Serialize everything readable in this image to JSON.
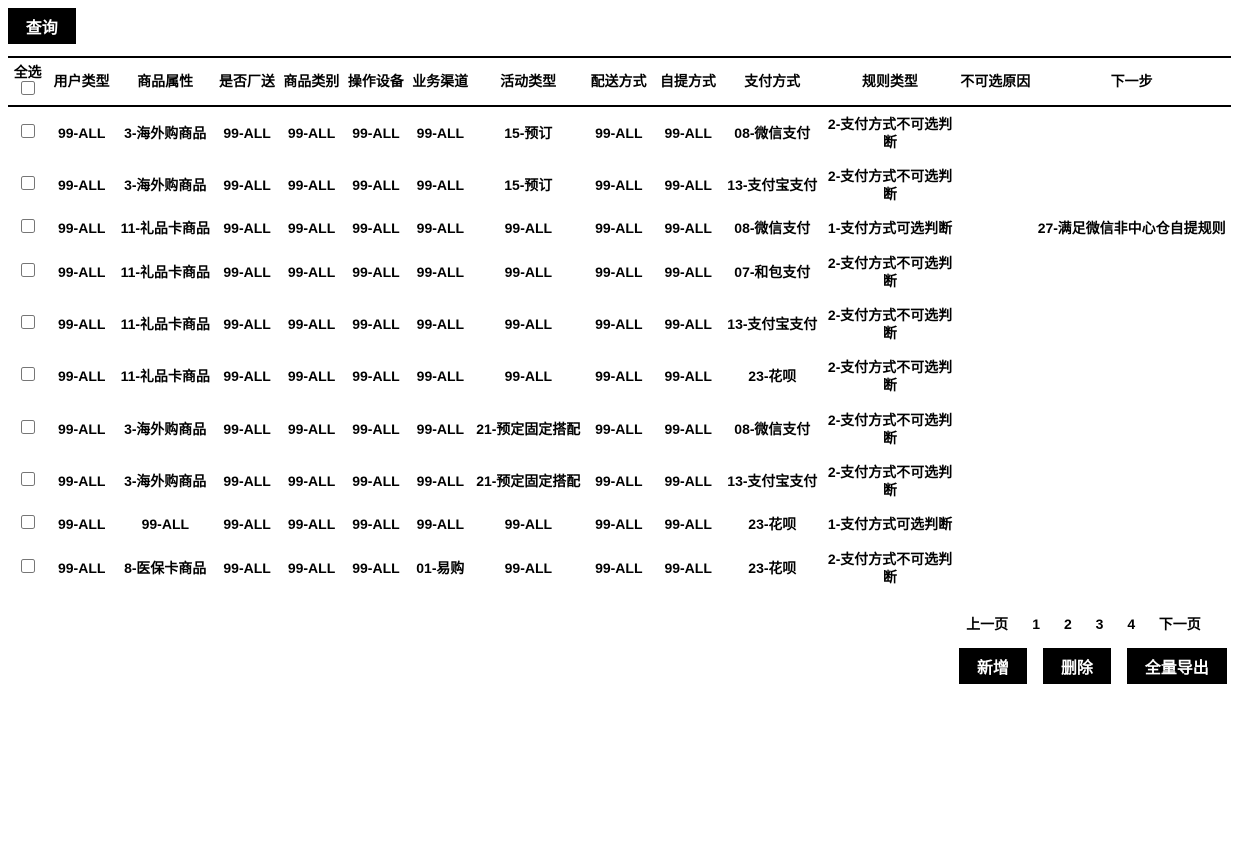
{
  "toolbar": {
    "query_label": "查询"
  },
  "table": {
    "columns": {
      "select_all": "全选",
      "user_type": "用户类型",
      "product_attr": "商品属性",
      "factory_send": "是否厂送",
      "product_cat": "商品类别",
      "op_device": "操作设备",
      "biz_channel": "业务渠道",
      "activity_type": "活动类型",
      "delivery_method": "配送方式",
      "pickup_method": "自提方式",
      "payment_method": "支付方式",
      "rule_type": "规则类型",
      "unselectable_reason": "不可选原因",
      "next_step": "下一步"
    },
    "rows": [
      {
        "user_type": "99-ALL",
        "product_attr": "3-海外购商品",
        "factory_send": "99-ALL",
        "product_cat": "99-ALL",
        "op_device": "99-ALL",
        "biz_channel": "99-ALL",
        "activity_type": "15-预订",
        "delivery_method": "99-ALL",
        "pickup_method": "99-ALL",
        "payment_method": "08-微信支付",
        "rule_type": "2-支付方式不可选判断",
        "unselectable_reason": "",
        "next_step": ""
      },
      {
        "user_type": "99-ALL",
        "product_attr": "3-海外购商品",
        "factory_send": "99-ALL",
        "product_cat": "99-ALL",
        "op_device": "99-ALL",
        "biz_channel": "99-ALL",
        "activity_type": "15-预订",
        "delivery_method": "99-ALL",
        "pickup_method": "99-ALL",
        "payment_method": "13-支付宝支付",
        "rule_type": "2-支付方式不可选判断",
        "unselectable_reason": "",
        "next_step": ""
      },
      {
        "user_type": "99-ALL",
        "product_attr": "11-礼品卡商品",
        "factory_send": "99-ALL",
        "product_cat": "99-ALL",
        "op_device": "99-ALL",
        "biz_channel": "99-ALL",
        "activity_type": "99-ALL",
        "delivery_method": "99-ALL",
        "pickup_method": "99-ALL",
        "payment_method": "08-微信支付",
        "rule_type": "1-支付方式可选判断",
        "unselectable_reason": "",
        "next_step": "27-满足微信非中心仓自提规则"
      },
      {
        "user_type": "99-ALL",
        "product_attr": "11-礼品卡商品",
        "factory_send": "99-ALL",
        "product_cat": "99-ALL",
        "op_device": "99-ALL",
        "biz_channel": "99-ALL",
        "activity_type": "99-ALL",
        "delivery_method": "99-ALL",
        "pickup_method": "99-ALL",
        "payment_method": "07-和包支付",
        "rule_type": "2-支付方式不可选判断",
        "unselectable_reason": "",
        "next_step": ""
      },
      {
        "user_type": "99-ALL",
        "product_attr": "11-礼品卡商品",
        "factory_send": "99-ALL",
        "product_cat": "99-ALL",
        "op_device": "99-ALL",
        "biz_channel": "99-ALL",
        "activity_type": "99-ALL",
        "delivery_method": "99-ALL",
        "pickup_method": "99-ALL",
        "payment_method": "13-支付宝支付",
        "rule_type": "2-支付方式不可选判断",
        "unselectable_reason": "",
        "next_step": ""
      },
      {
        "user_type": "99-ALL",
        "product_attr": "11-礼品卡商品",
        "factory_send": "99-ALL",
        "product_cat": "99-ALL",
        "op_device": "99-ALL",
        "biz_channel": "99-ALL",
        "activity_type": "99-ALL",
        "delivery_method": "99-ALL",
        "pickup_method": "99-ALL",
        "payment_method": "23-花呗",
        "rule_type": "2-支付方式不可选判断",
        "unselectable_reason": "",
        "next_step": ""
      },
      {
        "user_type": "99-ALL",
        "product_attr": "3-海外购商品",
        "factory_send": "99-ALL",
        "product_cat": "99-ALL",
        "op_device": "99-ALL",
        "biz_channel": "99-ALL",
        "activity_type": "21-预定固定搭配",
        "delivery_method": "99-ALL",
        "pickup_method": "99-ALL",
        "payment_method": "08-微信支付",
        "rule_type": "2-支付方式不可选判断",
        "unselectable_reason": "",
        "next_step": ""
      },
      {
        "user_type": "99-ALL",
        "product_attr": "3-海外购商品",
        "factory_send": "99-ALL",
        "product_cat": "99-ALL",
        "op_device": "99-ALL",
        "biz_channel": "99-ALL",
        "activity_type": "21-预定固定搭配",
        "delivery_method": "99-ALL",
        "pickup_method": "99-ALL",
        "payment_method": "13-支付宝支付",
        "rule_type": "2-支付方式不可选判断",
        "unselectable_reason": "",
        "next_step": ""
      },
      {
        "user_type": "99-ALL",
        "product_attr": "99-ALL",
        "factory_send": "99-ALL",
        "product_cat": "99-ALL",
        "op_device": "99-ALL",
        "biz_channel": "99-ALL",
        "activity_type": "99-ALL",
        "delivery_method": "99-ALL",
        "pickup_method": "99-ALL",
        "payment_method": "23-花呗",
        "rule_type": "1-支付方式可选判断",
        "unselectable_reason": "",
        "next_step": ""
      },
      {
        "user_type": "99-ALL",
        "product_attr": "8-医保卡商品",
        "factory_send": "99-ALL",
        "product_cat": "99-ALL",
        "op_device": "99-ALL",
        "biz_channel": "01-易购",
        "activity_type": "99-ALL",
        "delivery_method": "99-ALL",
        "pickup_method": "99-ALL",
        "payment_method": "23-花呗",
        "rule_type": "2-支付方式不可选判断",
        "unselectable_reason": "",
        "next_step": ""
      }
    ]
  },
  "pagination": {
    "prev": "上一页",
    "pages": [
      "1",
      "2",
      "3",
      "4"
    ],
    "next": "下一页"
  },
  "actions": {
    "add": "新增",
    "delete": "删除",
    "export_all": "全量导出"
  }
}
